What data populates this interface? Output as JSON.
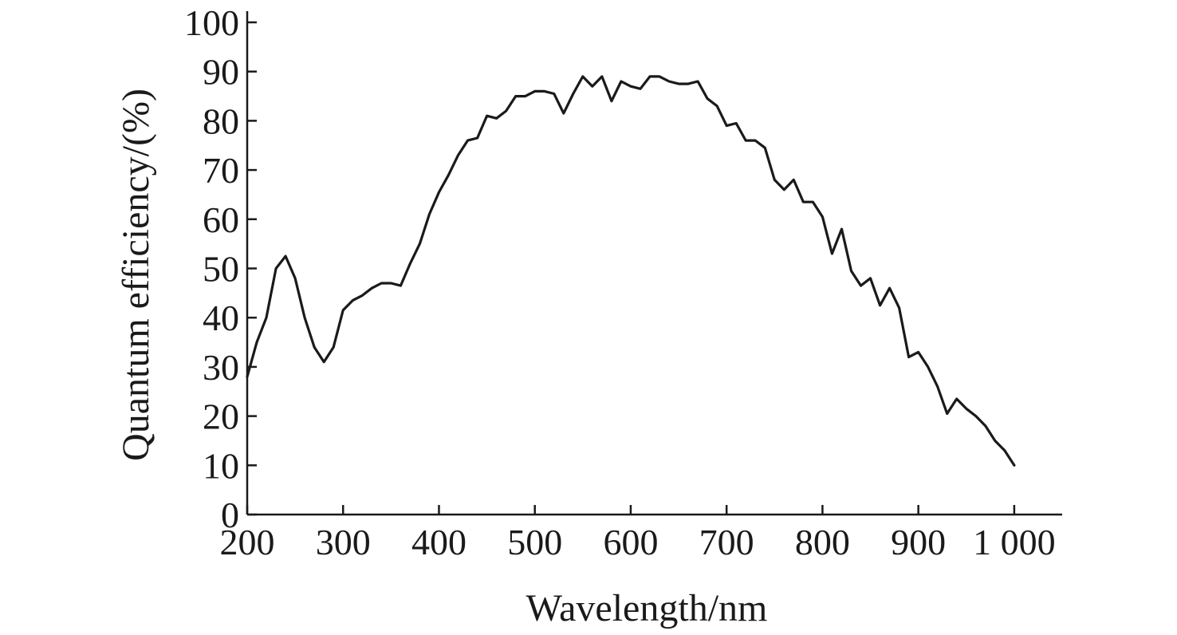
{
  "chart_data": {
    "type": "line",
    "title": "",
    "xlabel": "Wavelength/nm",
    "ylabel": "Quantum efficiency/(%)",
    "xlim": [
      200,
      1050
    ],
    "ylim": [
      0,
      100
    ],
    "xticks": [
      200,
      300,
      400,
      500,
      600,
      700,
      800,
      900,
      1000
    ],
    "xtick_labels": [
      "200",
      "300",
      "400",
      "500",
      "600",
      "700",
      "800",
      "900",
      "1 000"
    ],
    "yticks": [
      0,
      10,
      20,
      30,
      40,
      50,
      60,
      70,
      80,
      90,
      100
    ],
    "ytick_labels": [
      "0",
      "10",
      "20",
      "30",
      "40",
      "50",
      "60",
      "70",
      "80",
      "90",
      "100"
    ],
    "grid": false,
    "legend": "none",
    "series": [
      {
        "color": "#1a1a1a",
        "x": [
          200,
          210,
          220,
          230,
          240,
          250,
          260,
          270,
          280,
          290,
          300,
          310,
          320,
          330,
          340,
          350,
          360,
          370,
          380,
          390,
          400,
          410,
          420,
          430,
          440,
          450,
          460,
          470,
          480,
          490,
          500,
          510,
          520,
          530,
          540,
          550,
          560,
          570,
          580,
          590,
          600,
          610,
          620,
          630,
          640,
          650,
          660,
          670,
          680,
          690,
          700,
          710,
          720,
          730,
          740,
          750,
          760,
          770,
          780,
          790,
          800,
          810,
          820,
          830,
          840,
          850,
          860,
          870,
          880,
          890,
          900,
          910,
          920,
          930,
          940,
          950,
          960,
          970,
          980,
          990,
          1000
        ],
        "y": [
          28,
          35,
          40,
          50,
          52.5,
          48,
          40,
          34,
          31,
          34,
          41.5,
          43.5,
          44.5,
          46,
          47,
          47,
          46.5,
          51,
          55,
          61,
          65.5,
          69,
          73,
          76,
          76.5,
          81,
          80.5,
          82,
          85,
          85,
          86,
          86,
          85.5,
          81.5,
          85.5,
          89,
          87,
          89,
          84,
          88,
          87,
          86.5,
          89,
          89,
          88,
          87.5,
          87.5,
          88,
          84.5,
          83,
          79,
          79.5,
          76,
          76,
          74.5,
          68,
          66,
          68,
          63.5,
          63.5,
          60.5,
          53,
          58,
          49.5,
          46.5,
          48,
          42.5,
          46,
          42,
          32,
          33,
          30,
          26,
          20.5,
          23.5,
          21.5,
          20,
          18,
          15,
          13,
          10
        ]
      }
    ]
  }
}
